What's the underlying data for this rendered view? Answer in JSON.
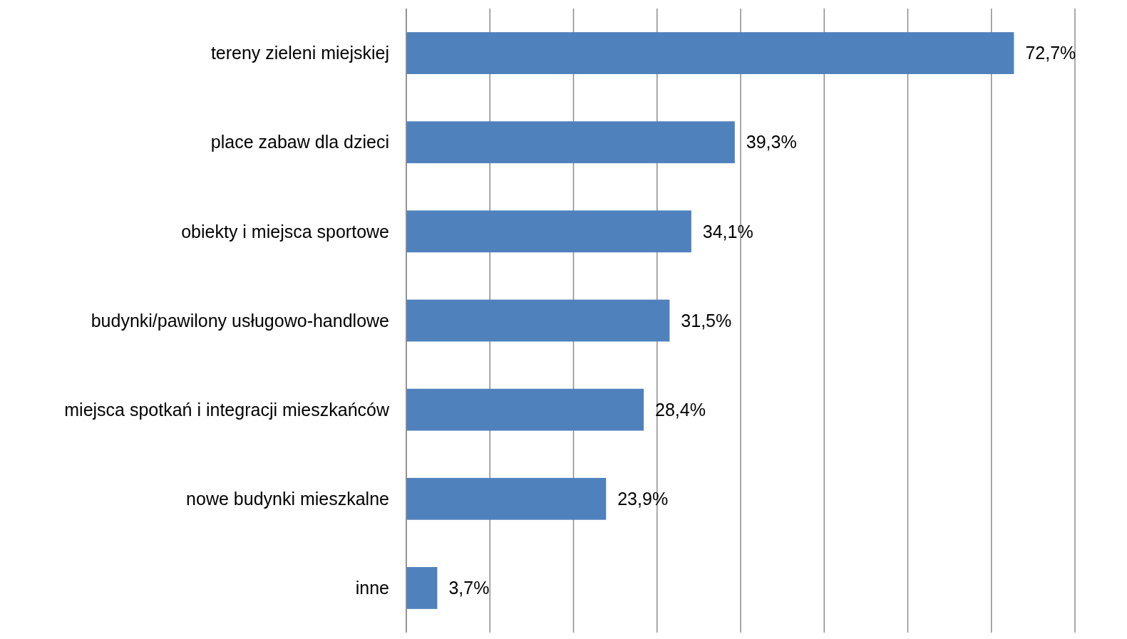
{
  "chart_data": {
    "type": "bar",
    "orientation": "horizontal",
    "categories": [
      "tereny zieleni miejskiej",
      "place zabaw dla dzieci",
      "obiekty i miejsca sportowe",
      "budynki/pawilony usługowo-handlowe",
      "miejsca spotkań i integracji mieszkańców",
      "nowe budynki mieszkalne",
      "inne"
    ],
    "values": [
      72.7,
      39.3,
      34.1,
      31.5,
      28.4,
      23.9,
      3.7
    ],
    "value_labels": [
      "72,7%",
      "39,3%",
      "34,1%",
      "31,5%",
      "28,4%",
      "23,9%",
      "3,7%"
    ],
    "color": "#4f81bd",
    "xlim": [
      0,
      80
    ],
    "xticks": [
      {
        "value": 0,
        "label": null
      },
      {
        "value": 10,
        "label": null
      },
      {
        "value": 20,
        "label": null
      },
      {
        "value": 30,
        "label": null
      },
      {
        "value": 40,
        "label": null
      },
      {
        "value": 50,
        "label": null
      },
      {
        "value": 60,
        "label": null
      },
      {
        "value": 70,
        "label": null
      },
      {
        "value": 80,
        "label": null
      }
    ],
    "grid": "x",
    "tick_labels": "y"
  }
}
